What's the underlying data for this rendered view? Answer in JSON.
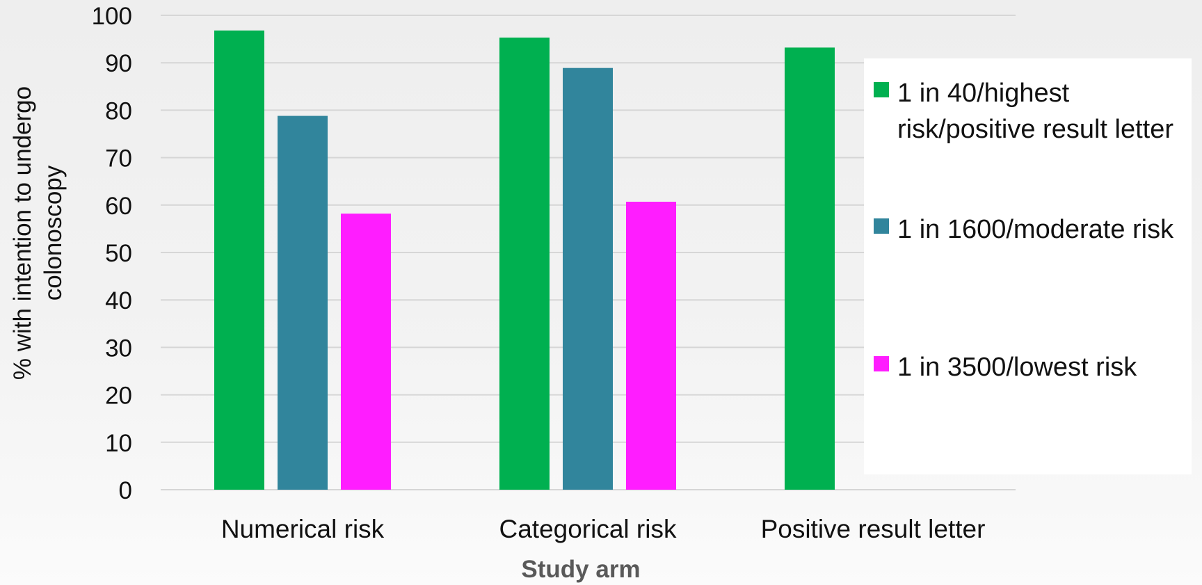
{
  "chart_data": {
    "type": "bar",
    "categories": [
      "Numerical risk",
      "Categorical risk",
      "Positive result letter"
    ],
    "series": [
      {
        "name": "1 in 40/highest risk/positive result letter",
        "values": [
          96.8,
          95.3,
          93.2
        ],
        "color": "#00b050"
      },
      {
        "name": "1 in 1600/moderate risk",
        "values": [
          78.8,
          88.9,
          null
        ],
        "color": "#31859c"
      },
      {
        "name": "1 in 3500/lowest risk",
        "values": [
          58.2,
          60.7,
          null
        ],
        "color": "#ff1dff"
      }
    ],
    "xlabel": "Study arm",
    "ylabel": "% with intention to undergo colonoscopy",
    "ylim": [
      0,
      100
    ],
    "yticks": [
      "0",
      "10",
      "20",
      "30",
      "40",
      "50",
      "60",
      "70",
      "80",
      "90",
      "100"
    ],
    "grid": true,
    "legend_position": "right"
  }
}
